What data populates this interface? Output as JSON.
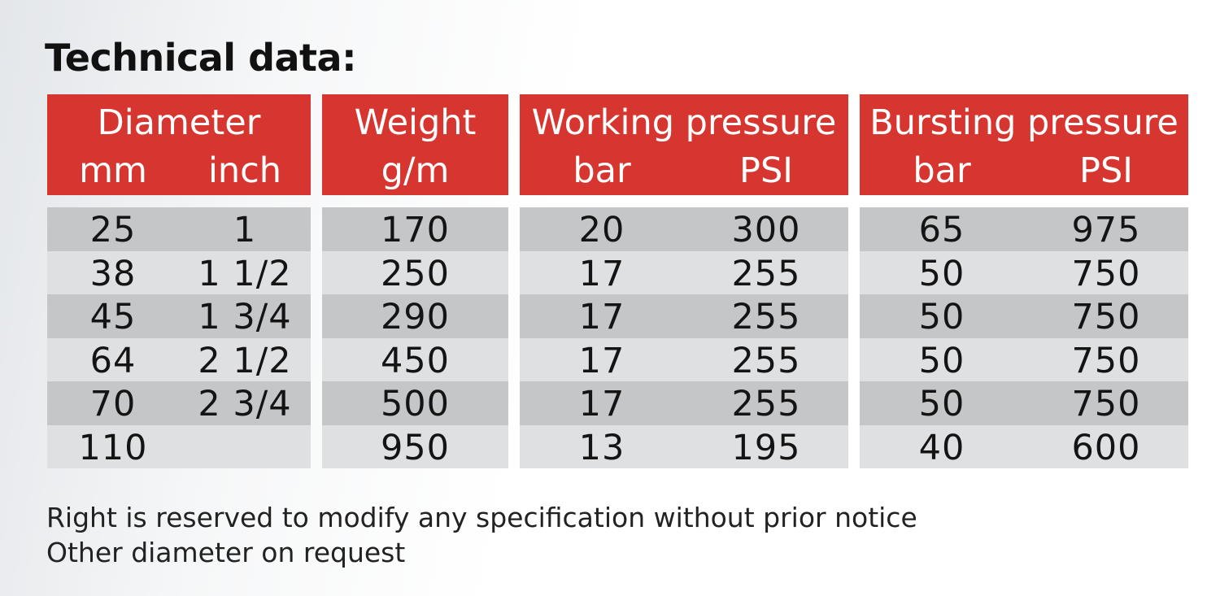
{
  "title": "Technical data:",
  "headers": {
    "diameter": {
      "title": "Diameter",
      "sub1": "mm",
      "sub2": "inch"
    },
    "weight": {
      "title": "Weight",
      "sub1": "g/m"
    },
    "working": {
      "title": "Working pressure",
      "sub1": "bar",
      "sub2": "PSI"
    },
    "bursting": {
      "title": "Bursting pressure",
      "sub1": "bar",
      "sub2": "PSI"
    }
  },
  "rows": [
    {
      "mm": "25",
      "inch": "1",
      "weight": "170",
      "work_bar": "20",
      "work_psi": "300",
      "burst_bar": "65",
      "burst_psi": "975"
    },
    {
      "mm": "38",
      "inch": "1 1/2",
      "weight": "250",
      "work_bar": "17",
      "work_psi": "255",
      "burst_bar": "50",
      "burst_psi": "750"
    },
    {
      "mm": "45",
      "inch": "1 3/4",
      "weight": "290",
      "work_bar": "17",
      "work_psi": "255",
      "burst_bar": "50",
      "burst_psi": "750"
    },
    {
      "mm": "64",
      "inch": "2 1/2",
      "weight": "450",
      "work_bar": "17",
      "work_psi": "255",
      "burst_bar": "50",
      "burst_psi": "750"
    },
    {
      "mm": "70",
      "inch": "2 3/4",
      "weight": "500",
      "work_bar": "17",
      "work_psi": "255",
      "burst_bar": "50",
      "burst_psi": "750"
    },
    {
      "mm": "110",
      "inch": "",
      "weight": "950",
      "work_bar": "13",
      "work_psi": "195",
      "burst_bar": "40",
      "burst_psi": "600"
    }
  ],
  "footnotes": {
    "line1": "Right is reserved to modify any specification without prior notice",
    "line2": "Other diameter on request"
  },
  "colors": {
    "header_red": "#d6362f",
    "row_dark": "#c5c6c8",
    "row_light": "#dfe0e2"
  }
}
